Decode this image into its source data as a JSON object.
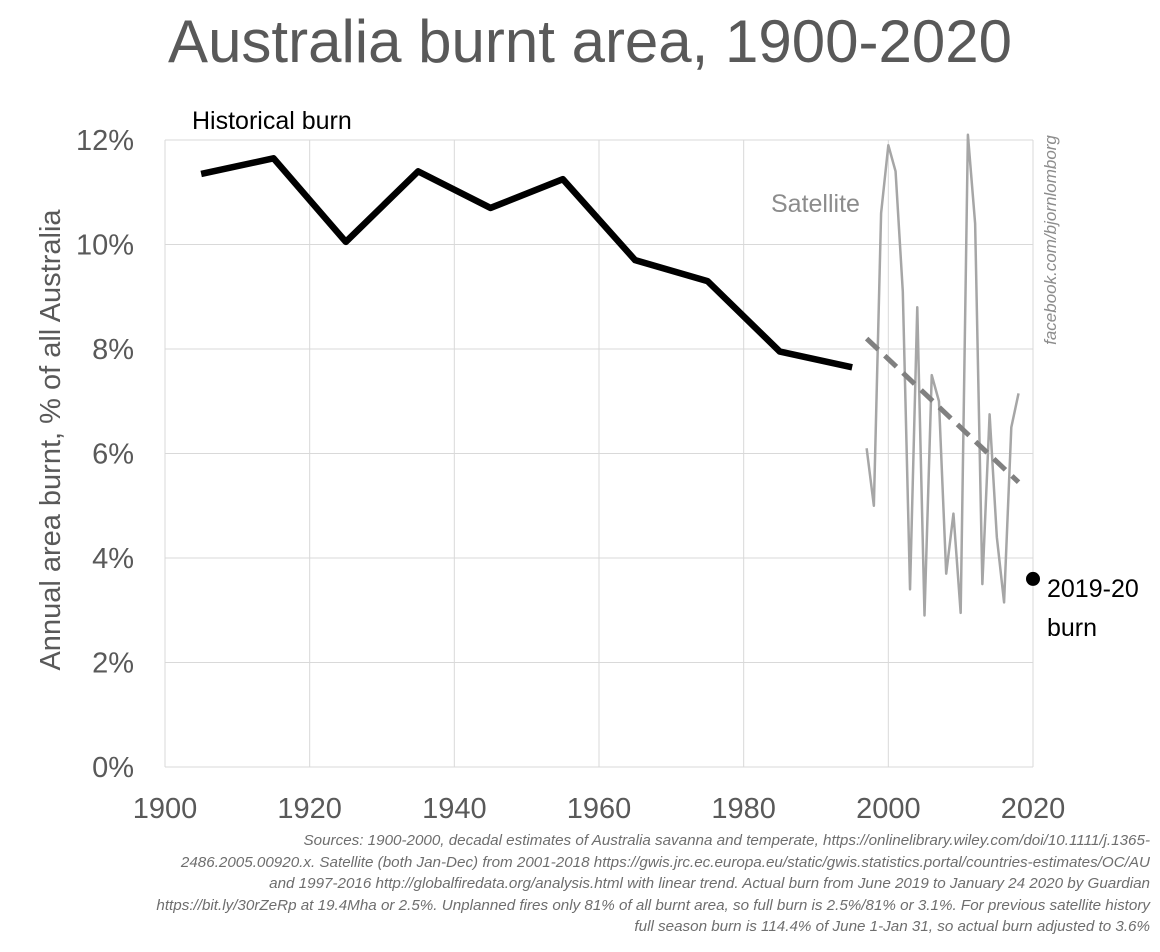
{
  "chart_data": {
    "type": "line",
    "title": "Australia burnt area, 1900-2020",
    "ylabel": "Annual area burnt, % of all Australia",
    "xlabel": "",
    "xlim": [
      1900,
      2020
    ],
    "ylim": [
      0,
      12
    ],
    "x_ticks": [
      1900,
      1920,
      1940,
      1960,
      1980,
      2000,
      2020
    ],
    "y_ticks": [
      0,
      2,
      4,
      6,
      8,
      10,
      12
    ],
    "y_tick_labels": [
      "0%",
      "2%",
      "4%",
      "6%",
      "8%",
      "10%",
      "12%"
    ],
    "grid": true,
    "series": [
      {
        "name": "Historical burn",
        "color": "#000000",
        "style": "solid",
        "x": [
          1905,
          1915,
          1925,
          1935,
          1945,
          1955,
          1965,
          1975,
          1985,
          1995
        ],
        "values": [
          11.35,
          11.65,
          10.05,
          11.4,
          10.7,
          11.25,
          9.7,
          9.3,
          7.95,
          7.65
        ]
      },
      {
        "name": "Satellite",
        "color": "#a6a6a6",
        "style": "solid",
        "x": [
          1997,
          1998,
          1999,
          2000,
          2001,
          2002,
          2003,
          2004,
          2005,
          2006,
          2007,
          2008,
          2009,
          2010,
          2011,
          2012,
          2013,
          2014,
          2015,
          2016,
          2017,
          2018
        ],
        "values": [
          6.1,
          5.0,
          10.6,
          11.9,
          11.4,
          9.1,
          3.4,
          8.8,
          2.9,
          7.5,
          7.0,
          3.7,
          4.85,
          2.95,
          12.1,
          10.4,
          3.5,
          6.75,
          4.4,
          3.15,
          6.5,
          7.15
        ]
      },
      {
        "name": "Satellite trend",
        "color": "#808080",
        "style": "dashed",
        "x": [
          1997,
          2018
        ],
        "values": [
          8.2,
          5.45
        ]
      },
      {
        "name": "2019-20 burn",
        "color": "#000000",
        "style": "point",
        "x": [
          2020
        ],
        "values": [
          3.6
        ]
      }
    ],
    "annotations": {
      "historical_label": "Historical burn",
      "satellite_label": "Satellite",
      "burn_label_line1": "2019-20",
      "burn_label_line2": "burn"
    },
    "watermark": "facebook.com/bjornlomborg",
    "sources": [
      "Sources: 1900-2000, decadal estimates of Australia savanna and temperate, https://onlinelibrary.wiley.com/doi/10.1111/j.1365-",
      "2486.2005.00920.x. Satellite (both Jan-Dec) from 2001-2018 https://gwis.jrc.ec.europa.eu/static/gwis.statistics.portal/countries-estimates/OC/AU",
      "and 1997-2016 http://globalfiredata.org/analysis.html with linear trend. Actual burn from June 2019 to January 24 2020 by Guardian",
      "https://bit.ly/30rZeRp at 19.4Mha or 2.5%. Unplanned fires only 81% of all burnt area, so full burn is 2.5%/81% or 3.1%. For previous satellite history",
      "full season burn is 114.4% of June 1-Jan 31, so actual burn adjusted to 3.6%"
    ]
  }
}
